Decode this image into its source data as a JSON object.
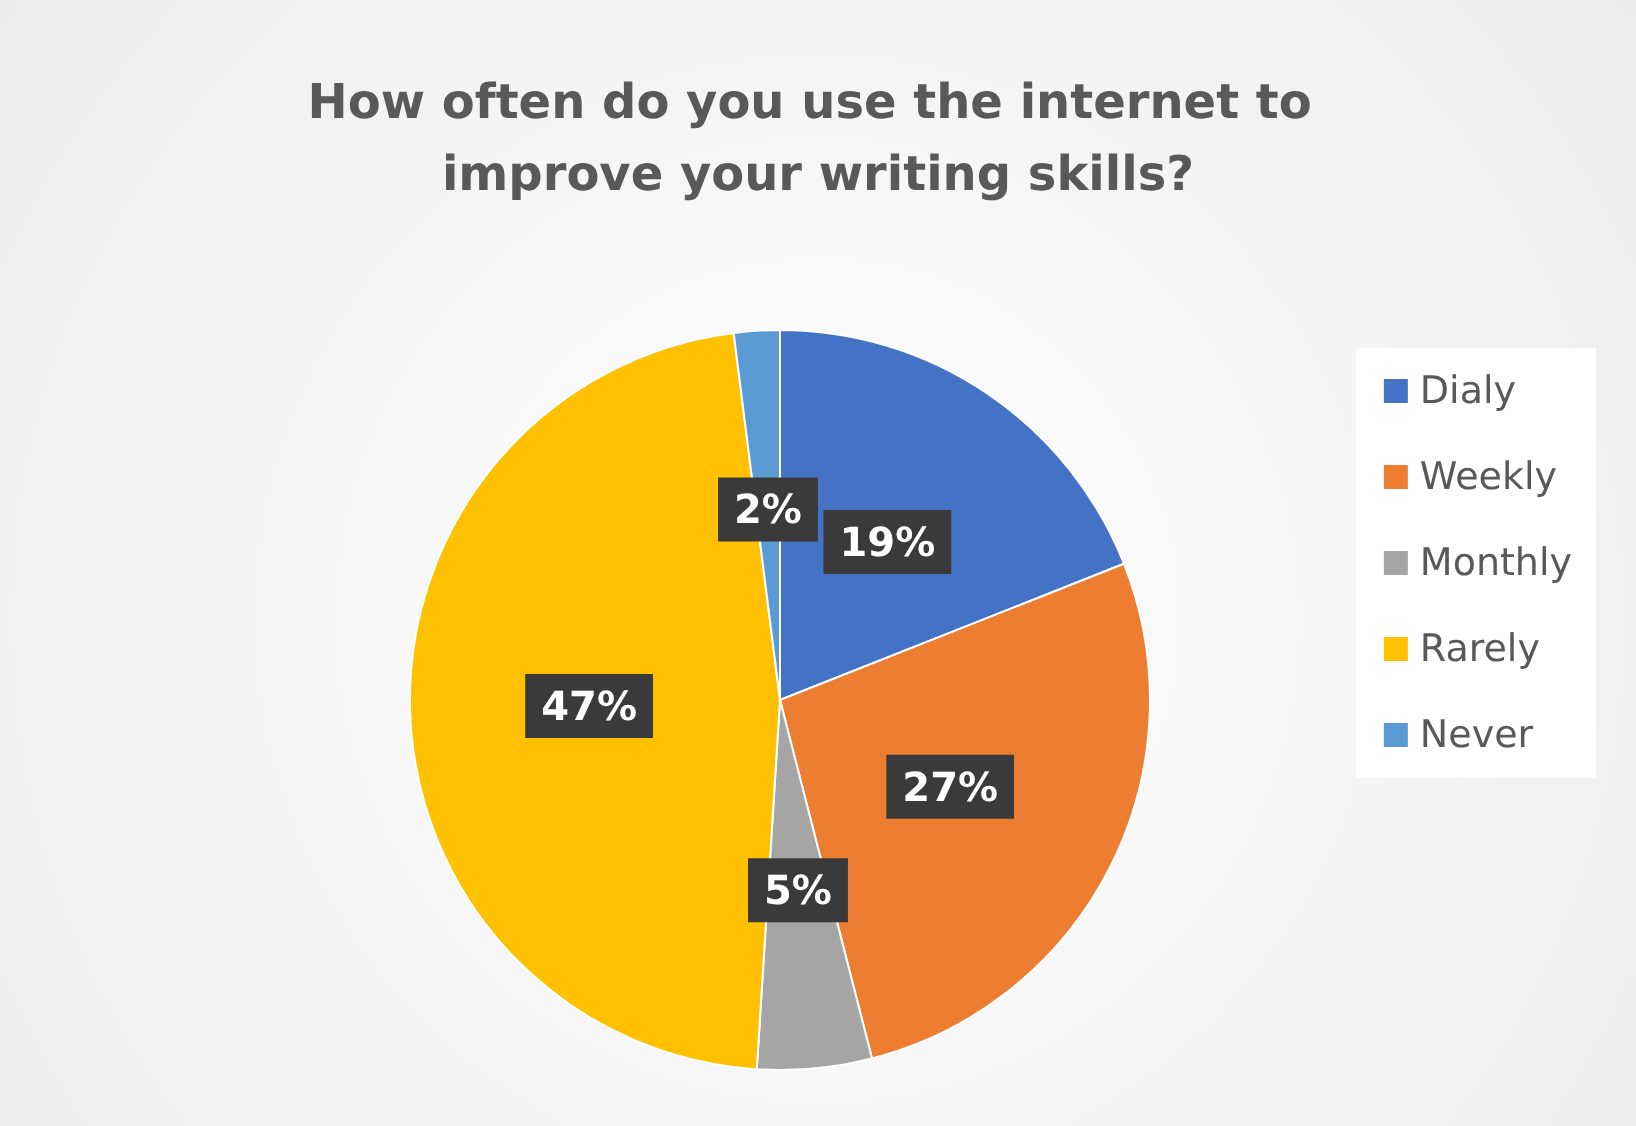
{
  "chart_data": {
    "type": "pie",
    "title": "How often do you use the internet to improve your writing skills?",
    "categories": [
      "Dialy",
      "Weekly",
      "Monthly",
      "Rarely",
      "Never"
    ],
    "values": [
      19,
      27,
      5,
      47,
      2
    ],
    "colors": [
      "#4472c4",
      "#ed7d31",
      "#a5a5a5",
      "#ffc000",
      "#5b9bd5"
    ],
    "value_labels": [
      "19%",
      "27%",
      "5%",
      "47%",
      "2%"
    ],
    "legend": "right"
  }
}
